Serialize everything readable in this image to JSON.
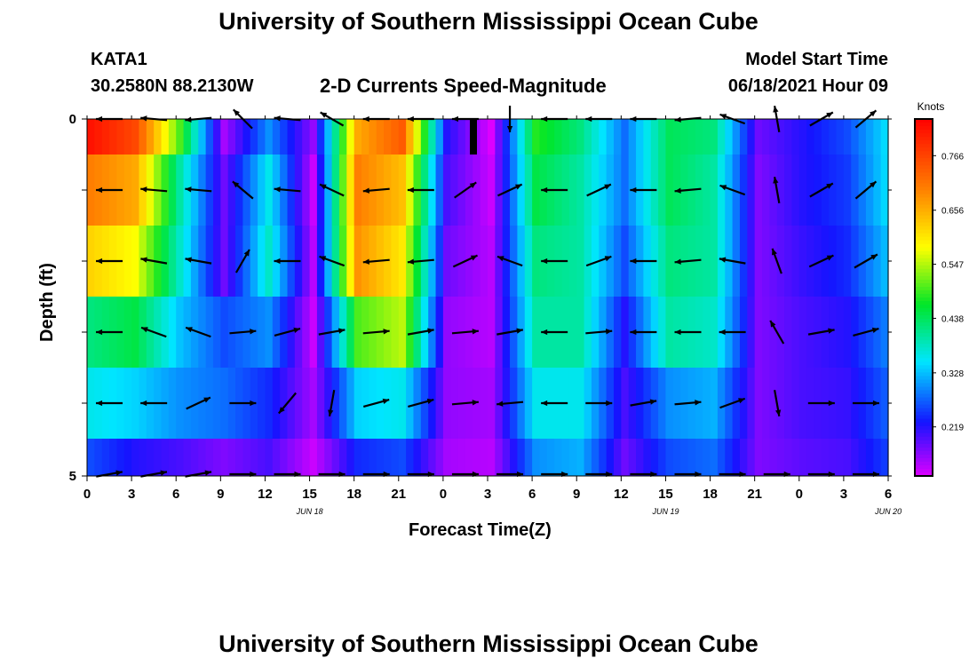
{
  "page_title": "University of Southern Mississippi Ocean Cube",
  "station": {
    "id": "KATA1",
    "coords": "30.2580N  88.2130W"
  },
  "plot_title": "2-D Currents Speed-Magnitude",
  "model": {
    "label": "Model Start Time",
    "value": "06/18/2021 Hour 09"
  },
  "footer_title": "University of Southern Mississippi Ocean Cube",
  "chart_data": {
    "type": "heatmap",
    "title": "2-D Currents Speed-Magnitude",
    "xlabel": "Forecast Time(Z)",
    "ylabel": "Depth (ft)",
    "x_tick_labels": [
      "0",
      "3",
      "6",
      "9",
      "12",
      "15",
      "18",
      "21",
      "0",
      "3",
      "6",
      "9",
      "12",
      "15",
      "18",
      "21",
      "0",
      "3",
      "6"
    ],
    "date_labels": [
      {
        "text": "JUN 18",
        "at_tick": 6
      },
      {
        "text": "JUN 19",
        "at_tick": 14
      },
      {
        "text": "JUN 20",
        "at_tick": 19
      }
    ],
    "y_tick_labels": [
      "0",
      "5"
    ],
    "ylim": [
      0,
      5
    ],
    "colorbar": {
      "unit": "Knots",
      "ticks": [
        "0.766",
        "0.656",
        "0.547",
        "0.438",
        "0.328",
        "0.219"
      ],
      "range": [
        0.12,
        0.84
      ]
    },
    "depth_layers": 5,
    "time_columns": [
      {
        "t": 0,
        "speed": [
          0.82,
          0.7,
          0.62,
          0.42,
          0.36,
          0.26
        ],
        "dir": [
          180,
          180,
          180,
          180,
          180,
          10
        ]
      },
      {
        "t": 3,
        "speed": [
          0.76,
          0.66,
          0.58,
          0.45,
          0.34,
          0.22
        ],
        "dir": [
          175,
          175,
          170,
          160,
          180,
          10
        ]
      },
      {
        "t": 6,
        "speed": [
          0.5,
          0.4,
          0.38,
          0.33,
          0.3,
          0.2
        ],
        "dir": [
          185,
          175,
          170,
          160,
          25,
          10
        ]
      },
      {
        "t": 9,
        "speed": [
          0.15,
          0.18,
          0.18,
          0.26,
          0.28,
          0.17
        ],
        "dir": [
          135,
          140,
          60,
          5,
          0,
          0
        ]
      },
      {
        "t": 12,
        "speed": [
          0.3,
          0.36,
          0.38,
          0.3,
          0.24,
          0.2
        ],
        "dir": [
          175,
          175,
          180,
          15,
          230,
          0
        ]
      },
      {
        "t": 15,
        "speed": [
          0.16,
          0.13,
          0.14,
          0.13,
          0.15,
          0.13
        ],
        "dir": [
          150,
          155,
          160,
          10,
          260,
          0
        ]
      },
      {
        "t": 18,
        "speed": [
          0.66,
          0.7,
          0.68,
          0.5,
          0.34,
          0.24
        ],
        "dir": [
          180,
          185,
          185,
          5,
          15,
          0
        ]
      },
      {
        "t": 21,
        "speed": [
          0.74,
          0.64,
          0.6,
          0.55,
          0.36,
          0.26
        ],
        "dir": [
          180,
          180,
          185,
          10,
          15,
          0
        ]
      },
      {
        "t": 0,
        "speed": [
          0.22,
          0.2,
          0.18,
          0.16,
          0.16,
          0.15
        ],
        "dir": [
          180,
          35,
          25,
          5,
          5,
          0
        ]
      },
      {
        "t": 3,
        "speed": [
          0.12,
          0.13,
          0.14,
          0.14,
          0.15,
          0.14
        ],
        "dir": [
          270,
          25,
          160,
          10,
          185,
          0
        ]
      },
      {
        "t": 6,
        "speed": [
          0.48,
          0.45,
          0.42,
          0.4,
          0.36,
          0.3
        ],
        "dir": [
          180,
          180,
          180,
          180,
          180,
          0
        ]
      },
      {
        "t": 9,
        "speed": [
          0.42,
          0.4,
          0.4,
          0.4,
          0.36,
          0.32
        ],
        "dir": [
          180,
          25,
          20,
          5,
          0,
          0
        ]
      },
      {
        "t": 12,
        "speed": [
          0.28,
          0.28,
          0.26,
          0.22,
          0.2,
          0.18
        ],
        "dir": [
          180,
          180,
          180,
          180,
          10,
          0
        ]
      },
      {
        "t": 15,
        "speed": [
          0.44,
          0.44,
          0.42,
          0.4,
          0.3,
          0.26
        ],
        "dir": [
          185,
          185,
          185,
          180,
          5,
          0
        ]
      },
      {
        "t": 18,
        "speed": [
          0.42,
          0.4,
          0.4,
          0.38,
          0.32,
          0.28
        ],
        "dir": [
          160,
          160,
          170,
          180,
          20,
          0
        ]
      },
      {
        "t": 21,
        "speed": [
          0.18,
          0.17,
          0.17,
          0.17,
          0.17,
          0.17
        ],
        "dir": [
          100,
          100,
          110,
          120,
          280,
          0
        ]
      },
      {
        "t": 0,
        "speed": [
          0.22,
          0.22,
          0.21,
          0.2,
          0.2,
          0.19
        ],
        "dir": [
          30,
          30,
          25,
          10,
          0,
          0
        ]
      },
      {
        "t": 3,
        "speed": [
          0.26,
          0.25,
          0.24,
          0.22,
          0.21,
          0.2
        ],
        "dir": [
          40,
          40,
          30,
          15,
          0,
          0
        ]
      },
      {
        "t": 6,
        "speed": [
          0.36,
          0.36,
          0.34,
          0.3,
          0.28,
          0.26
        ],
        "dir": [
          0,
          0,
          0,
          0,
          0,
          0
        ]
      }
    ]
  }
}
